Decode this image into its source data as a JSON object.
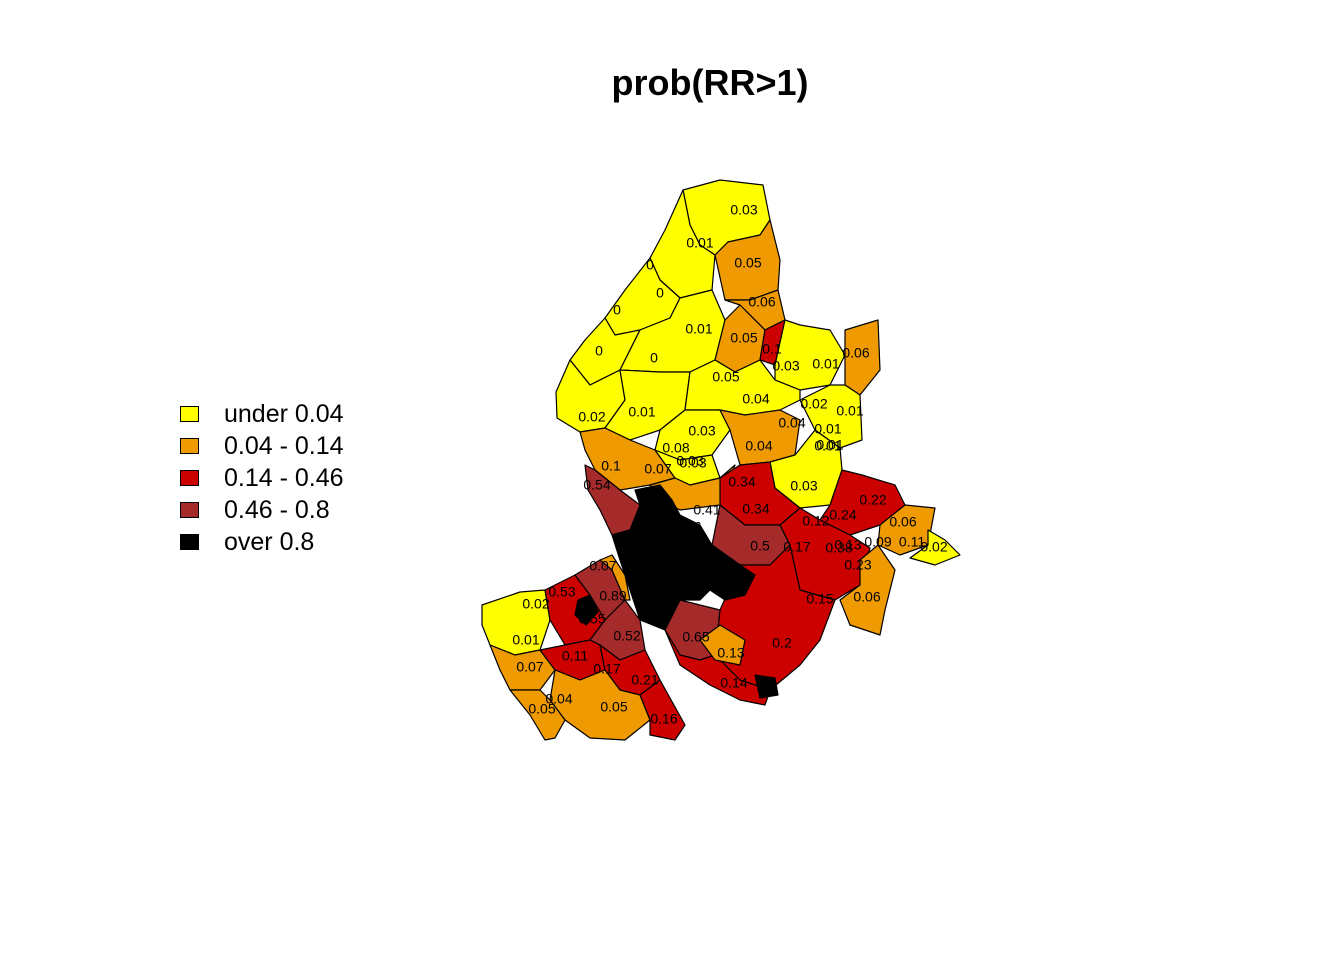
{
  "title": "prob(RR>1)",
  "legend": {
    "placement": "left",
    "items": [
      {
        "label": "under 0.04",
        "color": "#FFFF00"
      },
      {
        "label": "0.04 - 0.14",
        "color": "#EE9A00"
      },
      {
        "label": "0.14 - 0.46",
        "color": "#CD0000"
      },
      {
        "label": "0.46 - 0.8",
        "color": "#A52A2A"
      },
      {
        "label": "over 0.8",
        "color": "#000000"
      }
    ]
  },
  "map": {
    "label_values": [
      "0.03",
      "0.01",
      "0",
      "0.05",
      "0",
      "0.06",
      "0",
      "0.01",
      "0.05",
      "0.1",
      "0",
      "0.03",
      "0.01",
      "0.06",
      "0",
      "0.05",
      "0.01",
      "0.02",
      "0.01",
      "0.04",
      "0.03",
      "0.02",
      "0.04",
      "0.01",
      "0.01",
      "0.03",
      "0.08",
      "0.04",
      "0.01",
      "0.1",
      "0.07",
      "0.03",
      "0.54",
      "0.34",
      "0.03",
      "0.22",
      "0.76",
      "0.41",
      "0.34",
      "0.12",
      "0.24",
      "0.06",
      "0.5",
      "0.17",
      "0.09",
      "0.11",
      "0.02",
      "0.07",
      "0.38",
      "0.13",
      "0.23",
      "0.02",
      "0.53",
      "0.89",
      "0.55",
      "0.15",
      "0.01",
      "0.05",
      "0.06",
      "0.52",
      "0.2",
      "0.11",
      "0.07",
      "0.17",
      "0.13",
      "0.65",
      "0.21",
      "0.14",
      "0.04",
      "0.05",
      "0.16"
    ]
  }
}
